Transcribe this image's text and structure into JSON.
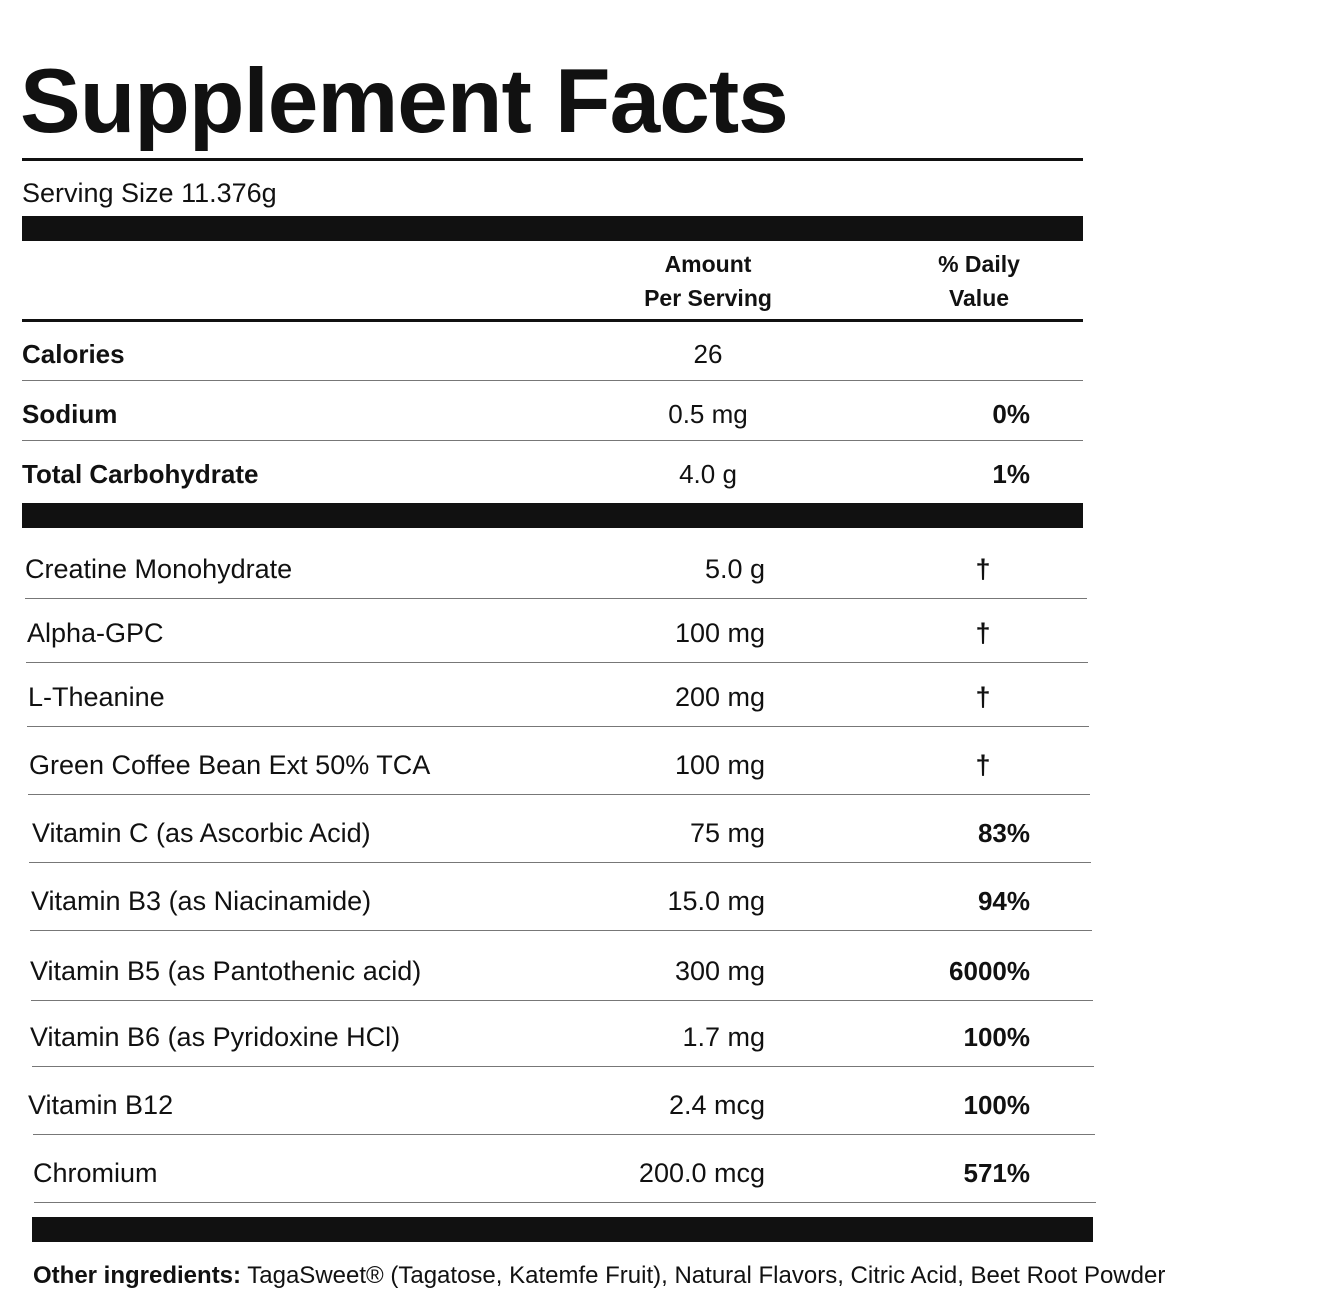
{
  "title": "Supplement Facts",
  "serving_size": "Serving Size 11.376g",
  "header": {
    "amount": [
      "Amount",
      "Per Serving"
    ],
    "daily_value": [
      "% Daily",
      "Value"
    ]
  },
  "nutrients": [
    {
      "name": "Calories",
      "amount": "26"
    },
    {
      "name": "Sodium",
      "amount": "0.5 mg",
      "daily_value": "0%"
    },
    {
      "name": "Total Carbohydrate",
      "amount": "4.0 g",
      "daily_value": "1%"
    }
  ],
  "ingredients": [
    {
      "name": "Creatine Monohydrate",
      "amount": "5.0 g",
      "daily_value": "†"
    },
    {
      "name": "Alpha-GPC",
      "amount": "100 mg",
      "daily_value": "†"
    },
    {
      "name": "L-Theanine",
      "amount": "200 mg",
      "daily_value": "†"
    },
    {
      "name": "Green Coffee Bean Ext 50% TCA",
      "amount": "100 mg",
      "daily_value": "†"
    },
    {
      "name": "Vitamin C (as Ascorbic Acid)",
      "amount": "75 mg",
      "daily_value": "83%"
    },
    {
      "name": "Vitamin B3 (as Niacinamide)",
      "amount": "15.0 mg",
      "daily_value": "94%"
    },
    {
      "name": "Vitamin B5 (as Pantothenic acid)",
      "amount": "300 mg",
      "daily_value": "6000%"
    },
    {
      "name": "Vitamin B6 (as Pyridoxine HCl)",
      "amount": "1.7 mg",
      "daily_value": "100%"
    },
    {
      "name": "Vitamin B12",
      "amount": "2.4 mcg",
      "daily_value": "100%"
    },
    {
      "name": "Chromium",
      "amount": "200.0 mcg",
      "daily_value": "571%"
    }
  ],
  "other_ingredients": {
    "label": "Other ingredients:",
    "text": "TagaSweet® (Tagatose, Katemfe Fruit), Natural Flavors, Citric Acid, Beet Root Powder"
  }
}
